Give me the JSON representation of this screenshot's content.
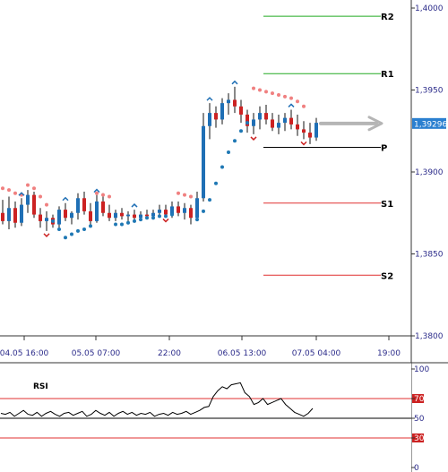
{
  "chart_data": [
    {
      "type": "candlestick",
      "title": "",
      "y_ticks": [
        "1,4000",
        "1,3950",
        "1,3900",
        "1,3850",
        "1,3800"
      ],
      "ylim": [
        1.38,
        1.4
      ],
      "x_ticks": [
        "04.05 16:00",
        "05.05 07:00",
        "22:00",
        "06.05 13:00",
        "07.05 04:00",
        "19:00"
      ],
      "current_price": "1,39296",
      "pivot_levels": [
        {
          "name": "R2",
          "value": 1.3995,
          "color": "#22aa22"
        },
        {
          "name": "R1",
          "value": 1.396,
          "color": "#22aa22"
        },
        {
          "name": "P",
          "value": 1.3915,
          "color": "#000000"
        },
        {
          "name": "S1",
          "value": 1.3881,
          "color": "#e03030"
        },
        {
          "name": "S2",
          "value": 1.3837,
          "color": "#e03030"
        }
      ],
      "colors": {
        "up": "#1f6fb5",
        "down": "#cc2222",
        "sar_up": "#1f78b4",
        "sar_down": "#f08080",
        "price_tag": "#2a7fd0",
        "arrow": "#b5b5b5"
      },
      "candles": [
        [
          1.3875,
          1.3883,
          1.3868,
          1.387
        ],
        [
          1.387,
          1.3885,
          1.3865,
          1.3878
        ],
        [
          1.3878,
          1.3882,
          1.3866,
          1.3869
        ],
        [
          1.3869,
          1.3884,
          1.3867,
          1.388
        ],
        [
          1.388,
          1.3889,
          1.3875,
          1.3886
        ],
        [
          1.3886,
          1.3888,
          1.3872,
          1.3874
        ],
        [
          1.3874,
          1.3878,
          1.3866,
          1.387
        ],
        [
          1.387,
          1.3876,
          1.3864,
          1.3872
        ],
        [
          1.3872,
          1.3874,
          1.3866,
          1.3868
        ],
        [
          1.3868,
          1.3879,
          1.3866,
          1.3877
        ],
        [
          1.3877,
          1.3881,
          1.387,
          1.3872
        ],
        [
          1.3872,
          1.3876,
          1.3868,
          1.3875
        ],
        [
          1.3875,
          1.3887,
          1.3871,
          1.3884
        ],
        [
          1.3884,
          1.3888,
          1.3874,
          1.3876
        ],
        [
          1.3876,
          1.3881,
          1.3868,
          1.387
        ],
        [
          1.387,
          1.3886,
          1.3869,
          1.3882
        ],
        [
          1.3882,
          1.3887,
          1.3873,
          1.3875
        ],
        [
          1.3875,
          1.388,
          1.387,
          1.3872
        ],
        [
          1.3872,
          1.3877,
          1.387,
          1.3875
        ],
        [
          1.3875,
          1.3878,
          1.3871,
          1.3873
        ],
        [
          1.3873,
          1.3876,
          1.387,
          1.3874
        ],
        [
          1.3874,
          1.3877,
          1.3871,
          1.3872
        ],
        [
          1.3872,
          1.3876,
          1.387,
          1.3874
        ],
        [
          1.3874,
          1.3877,
          1.3872,
          1.3873
        ],
        [
          1.3873,
          1.3877,
          1.3871,
          1.3875
        ],
        [
          1.3875,
          1.388,
          1.3873,
          1.3877
        ],
        [
          1.3877,
          1.388,
          1.3873,
          1.3874
        ],
        [
          1.3874,
          1.3882,
          1.3872,
          1.3879
        ],
        [
          1.3879,
          1.3882,
          1.3873,
          1.3875
        ],
        [
          1.3875,
          1.3881,
          1.3871,
          1.3878
        ],
        [
          1.3878,
          1.388,
          1.3868,
          1.3872
        ],
        [
          1.3872,
          1.3888,
          1.387,
          1.3884
        ],
        [
          1.3884,
          1.3936,
          1.3882,
          1.3928
        ],
        [
          1.3928,
          1.3942,
          1.392,
          1.3936
        ],
        [
          1.3936,
          1.394,
          1.3927,
          1.3932
        ],
        [
          1.3932,
          1.3945,
          1.3929,
          1.3942
        ],
        [
          1.3942,
          1.3948,
          1.3935,
          1.3944
        ],
        [
          1.3944,
          1.3952,
          1.3936,
          1.394
        ],
        [
          1.394,
          1.3944,
          1.393,
          1.3935
        ],
        [
          1.3935,
          1.3938,
          1.3924,
          1.3928
        ],
        [
          1.3928,
          1.3936,
          1.3923,
          1.3932
        ],
        [
          1.3932,
          1.394,
          1.3926,
          1.3936
        ],
        [
          1.3936,
          1.3941,
          1.3929,
          1.3932
        ],
        [
          1.3932,
          1.3936,
          1.3925,
          1.3927
        ],
        [
          1.3927,
          1.3935,
          1.3923,
          1.393
        ],
        [
          1.393,
          1.3936,
          1.3925,
          1.3933
        ],
        [
          1.3933,
          1.3938,
          1.3926,
          1.3929
        ],
        [
          1.3929,
          1.3935,
          1.3922,
          1.3926
        ],
        [
          1.3926,
          1.3931,
          1.392,
          1.3924
        ],
        [
          1.3924,
          1.393,
          1.3917,
          1.3921
        ],
        [
          1.3921,
          1.3933,
          1.3919,
          1.393
        ]
      ],
      "sar_points": [
        [
          0,
          1.389,
          "down"
        ],
        [
          1,
          1.3889,
          "down"
        ],
        [
          2,
          1.3887,
          "down"
        ],
        [
          3,
          1.3886,
          "down"
        ],
        [
          4,
          1.3892,
          "down"
        ],
        [
          5,
          1.389,
          "down"
        ],
        [
          6,
          1.3885,
          "down"
        ],
        [
          7,
          1.388,
          "down"
        ],
        [
          8,
          1.387,
          "up"
        ],
        [
          9,
          1.3865,
          "up"
        ],
        [
          10,
          1.386,
          "up"
        ],
        [
          11,
          1.3862,
          "up"
        ],
        [
          12,
          1.3864,
          "up"
        ],
        [
          13,
          1.3865,
          "up"
        ],
        [
          14,
          1.3867,
          "up"
        ],
        [
          15,
          1.3887,
          "down"
        ],
        [
          16,
          1.3886,
          "down"
        ],
        [
          17,
          1.3885,
          "down"
        ],
        [
          18,
          1.3868,
          "up"
        ],
        [
          19,
          1.3868,
          "up"
        ],
        [
          20,
          1.3869,
          "up"
        ],
        [
          21,
          1.387,
          "up"
        ],
        [
          22,
          1.3871,
          "up"
        ],
        [
          23,
          1.3872,
          "up"
        ],
        [
          24,
          1.3872,
          "up"
        ],
        [
          25,
          1.3873,
          "up"
        ],
        [
          26,
          1.3873,
          "up"
        ],
        [
          27,
          1.3874,
          "up"
        ],
        [
          28,
          1.3887,
          "down"
        ],
        [
          29,
          1.3886,
          "down"
        ],
        [
          30,
          1.3885,
          "down"
        ],
        [
          31,
          1.3871,
          "up"
        ],
        [
          32,
          1.3876,
          "up"
        ],
        [
          33,
          1.3883,
          "up"
        ],
        [
          34,
          1.3893,
          "up"
        ],
        [
          35,
          1.3903,
          "up"
        ],
        [
          36,
          1.3912,
          "up"
        ],
        [
          37,
          1.3919,
          "up"
        ],
        [
          38,
          1.3925,
          "up"
        ],
        [
          39,
          1.393,
          "up"
        ],
        [
          40,
          1.3951,
          "down"
        ],
        [
          41,
          1.395,
          "down"
        ],
        [
          42,
          1.3949,
          "down"
        ],
        [
          43,
          1.3948,
          "down"
        ],
        [
          44,
          1.3947,
          "down"
        ],
        [
          45,
          1.3946,
          "down"
        ],
        [
          46,
          1.3945,
          "down"
        ],
        [
          47,
          1.3943,
          "down"
        ],
        [
          48,
          1.394,
          "down"
        ]
      ],
      "fractals": [
        [
          3,
          "up"
        ],
        [
          10,
          "up"
        ],
        [
          7,
          "down"
        ],
        [
          15,
          "up"
        ],
        [
          21,
          "up"
        ],
        [
          26,
          "down"
        ],
        [
          33,
          "up"
        ],
        [
          37,
          "up"
        ],
        [
          40,
          "down"
        ],
        [
          46,
          "up"
        ],
        [
          48,
          "down"
        ]
      ]
    },
    {
      "type": "line",
      "title": "RSI",
      "y_ticks": [
        "100",
        "70",
        "50",
        "30",
        "0"
      ],
      "ylim": [
        0,
        100
      ],
      "level_lines": [
        70,
        50,
        30
      ],
      "values": [
        55,
        54,
        56,
        52,
        55,
        58,
        54,
        53,
        56,
        52,
        55,
        57,
        54,
        52,
        55,
        56,
        53,
        55,
        57,
        52,
        54,
        58,
        55,
        53,
        56,
        52,
        55,
        57,
        54,
        56,
        53,
        55,
        54,
        56,
        52,
        54,
        55,
        53,
        56,
        54,
        55,
        57,
        54,
        56,
        58,
        61,
        62,
        72,
        78,
        82,
        80,
        84,
        85,
        86,
        76,
        72,
        64,
        66,
        70,
        64,
        66,
        68,
        70,
        64,
        60,
        56,
        54,
        52,
        55,
        60
      ]
    }
  ]
}
